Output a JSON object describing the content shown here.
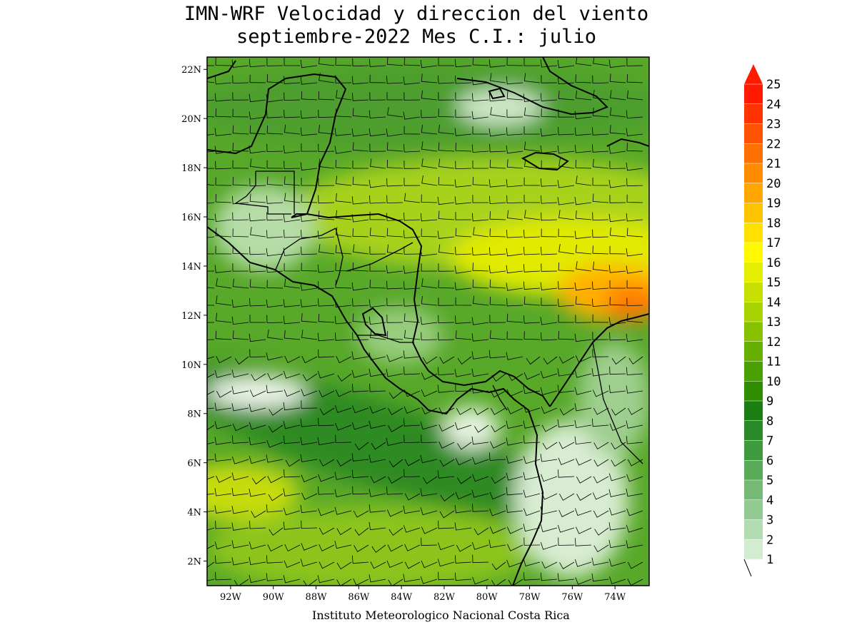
{
  "title": {
    "line1": "IMN-WRF Velocidad y direccion del viento",
    "line2": "septiembre-2022 Mes C.I.: julio"
  },
  "footer": "Instituto Meteorologico Nacional Costa Rica",
  "map": {
    "lon_range": [
      -93.1,
      -72.4
    ],
    "lat_range": [
      1.0,
      22.5
    ],
    "lat_ticks": [
      "22N",
      "20N",
      "18N",
      "16N",
      "14N",
      "12N",
      "10N",
      "8N",
      "6N",
      "4N",
      "2N"
    ],
    "lat_values": [
      22,
      20,
      18,
      16,
      14,
      12,
      10,
      8,
      6,
      4,
      2
    ],
    "lon_ticks": [
      "92W",
      "90W",
      "88W",
      "86W",
      "84W",
      "82W",
      "80W",
      "78W",
      "76W",
      "74W"
    ],
    "lon_values": [
      -92,
      -90,
      -88,
      -86,
      -84,
      -82,
      -80,
      -78,
      -76,
      -74
    ],
    "variable": "wind speed and direction (barbs)"
  },
  "colorbar": {
    "labels": [
      "25",
      "24",
      "23",
      "22",
      "21",
      "20",
      "19",
      "18",
      "17",
      "16",
      "15",
      "14",
      "13",
      "12",
      "11",
      "10",
      "9",
      "8",
      "7",
      "6",
      "5",
      "4",
      "3",
      "2",
      "1"
    ],
    "colors": [
      "#ff1a00",
      "#ff3300",
      "#ff5200",
      "#ff7000",
      "#ff8c00",
      "#ffa600",
      "#ffc400",
      "#ffe000",
      "#fff800",
      "#e6ee00",
      "#c8e000",
      "#a8d200",
      "#86c200",
      "#66b000",
      "#4aa000",
      "#2e8e00",
      "#1a7e10",
      "#2a8a2a",
      "#3f9a3f",
      "#58aa58",
      "#74ba74",
      "#92cb92",
      "#b2dcb2",
      "#d2ecd2",
      "#eef8ee"
    ]
  }
}
